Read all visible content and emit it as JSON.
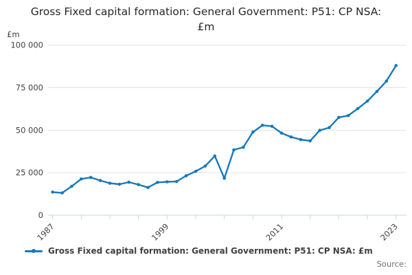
{
  "title": "Gross Fixed capital formation: General Government: P51: CP NSA: £m",
  "y_axis": {
    "unit_label": "£m",
    "tick_labels": [
      "100 000",
      "75 000",
      "50 000",
      "25 000",
      "0"
    ],
    "tick_values": [
      100000,
      75000,
      50000,
      25000,
      0
    ]
  },
  "x_axis": {
    "tick_years": [
      1987,
      1990,
      1993,
      1996,
      1999,
      2002,
      2005,
      2008,
      2011,
      2014,
      2017,
      2020,
      2023
    ],
    "labeled_years": [
      1987,
      1999,
      2011,
      2023
    ]
  },
  "legend": {
    "label": "Gross Fixed capital formation: General Government: P51: CP NSA: £m"
  },
  "source_label": "Source:",
  "colors": {
    "line": "#1779ba",
    "grid": "#e3e3e3",
    "axis": "#c9d4e0",
    "tick_text": "#414042",
    "title_text": "#262626",
    "source_text": "#707071"
  },
  "chart_data": {
    "type": "line",
    "title": "Gross Fixed capital formation: General Government: P51: CP NSA: £m",
    "xlabel": "",
    "ylabel": "£m",
    "ylim": [
      0,
      100000
    ],
    "grid": "horizontal",
    "legend_position": "bottom-left",
    "x": [
      1987,
      1988,
      1989,
      1990,
      1991,
      1992,
      1993,
      1994,
      1995,
      1996,
      1997,
      1998,
      1999,
      2000,
      2001,
      2002,
      2003,
      2004,
      2005,
      2006,
      2007,
      2008,
      2009,
      2010,
      2011,
      2012,
      2013,
      2014,
      2015,
      2016,
      2017,
      2018,
      2019,
      2020,
      2021,
      2022,
      2023
    ],
    "values": [
      13600,
      13100,
      17000,
      21300,
      22200,
      20400,
      18800,
      18200,
      19400,
      18000,
      16300,
      19300,
      19600,
      19800,
      23200,
      25800,
      28900,
      34800,
      21700,
      38400,
      40000,
      48900,
      52900,
      52300,
      48300,
      46000,
      44500,
      43700,
      49900,
      51500,
      57500,
      58600,
      62700,
      67100,
      72800,
      78900,
      88000
    ]
  }
}
